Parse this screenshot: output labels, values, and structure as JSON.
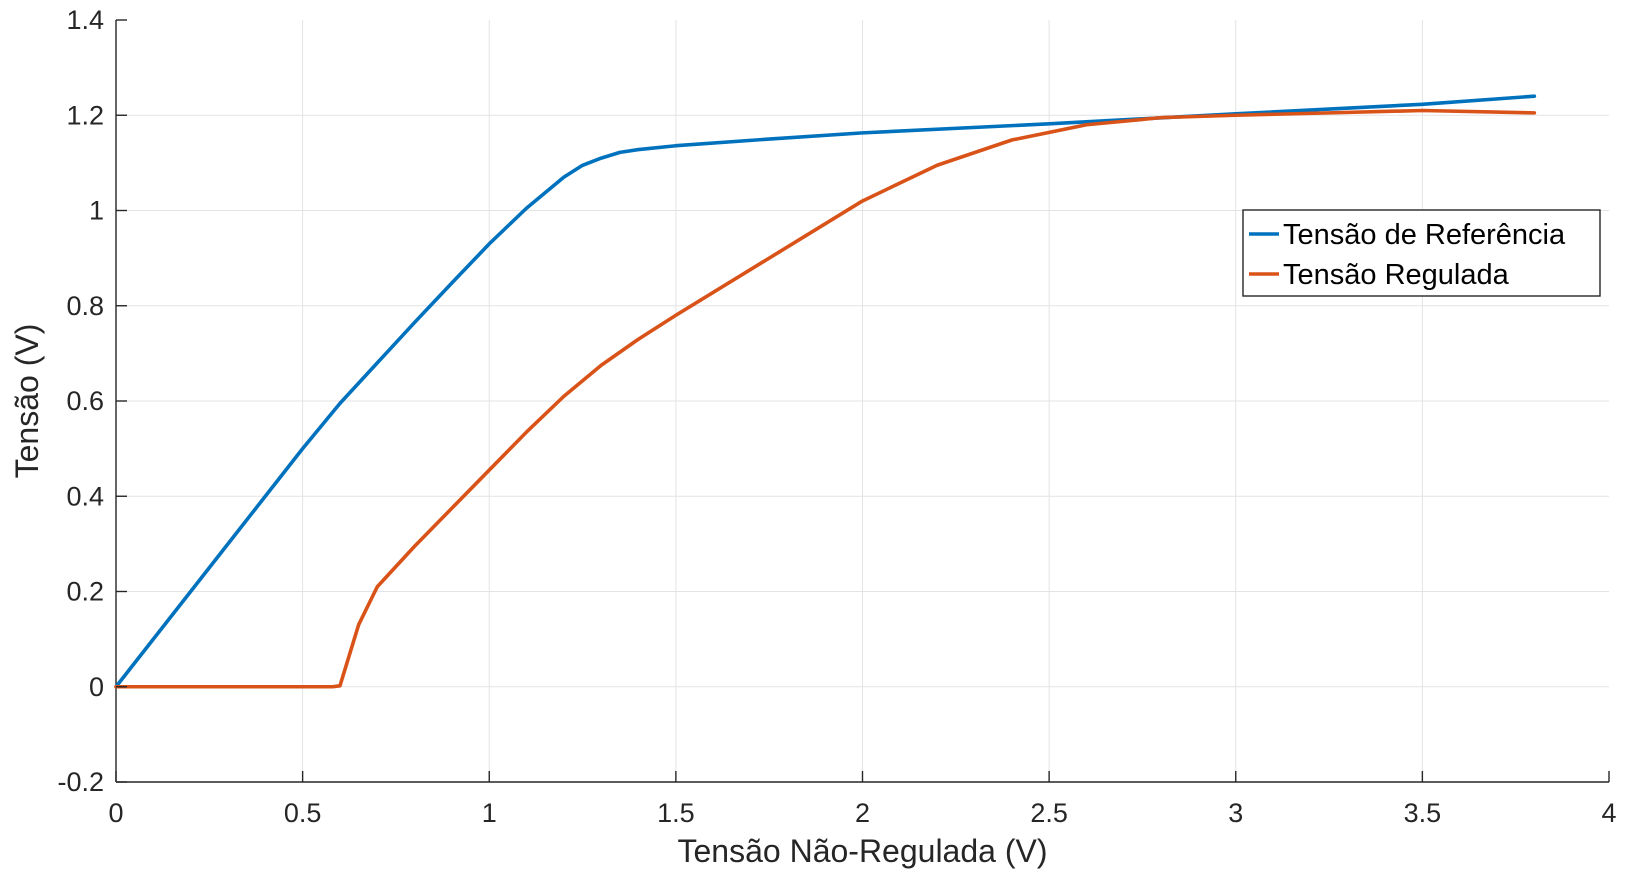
{
  "chart_data": {
    "type": "line",
    "title": "",
    "xlabel": "Tensão Não-Regulada (V)",
    "ylabel": "Tensão (V)",
    "xlim": [
      0,
      4
    ],
    "ylim": [
      -0.2,
      1.4
    ],
    "xticks": [
      0,
      0.5,
      1,
      1.5,
      2,
      2.5,
      3,
      3.5,
      4
    ],
    "xtick_labels": [
      "0",
      "0.5",
      "1",
      "1.5",
      "2",
      "2.5",
      "3",
      "3.5",
      "4"
    ],
    "yticks": [
      -0.2,
      0,
      0.2,
      0.4,
      0.6,
      0.8,
      1,
      1.2,
      1.4
    ],
    "ytick_labels": [
      "-0.2",
      "0",
      "0.2",
      "0.4",
      "0.6",
      "0.8",
      "1",
      "1.2",
      "1.4"
    ],
    "grid": true,
    "legend_position": "right",
    "series": [
      {
        "name": "Tensão de Referência",
        "color": "#0072BD",
        "points": [
          [
            0,
            0
          ],
          [
            0.1,
            0.1
          ],
          [
            0.2,
            0.2
          ],
          [
            0.3,
            0.3
          ],
          [
            0.4,
            0.4
          ],
          [
            0.5,
            0.5
          ],
          [
            0.6,
            0.595
          ],
          [
            0.7,
            0.68
          ],
          [
            0.8,
            0.765
          ],
          [
            0.9,
            0.848
          ],
          [
            1.0,
            0.93
          ],
          [
            1.1,
            1.005
          ],
          [
            1.2,
            1.07
          ],
          [
            1.25,
            1.095
          ],
          [
            1.3,
            1.11
          ],
          [
            1.35,
            1.122
          ],
          [
            1.4,
            1.128
          ],
          [
            1.5,
            1.136
          ],
          [
            1.75,
            1.15
          ],
          [
            2.0,
            1.163
          ],
          [
            2.5,
            1.182
          ],
          [
            3.0,
            1.203
          ],
          [
            3.5,
            1.223
          ],
          [
            3.8,
            1.24
          ]
        ]
      },
      {
        "name": "Tensão Regulada",
        "color": "#D95319",
        "points": [
          [
            0,
            0
          ],
          [
            0.3,
            0
          ],
          [
            0.58,
            0
          ],
          [
            0.6,
            0.002
          ],
          [
            0.65,
            0.13
          ],
          [
            0.7,
            0.21
          ],
          [
            0.8,
            0.295
          ],
          [
            0.9,
            0.375
          ],
          [
            1.0,
            0.455
          ],
          [
            1.1,
            0.535
          ],
          [
            1.2,
            0.61
          ],
          [
            1.3,
            0.675
          ],
          [
            1.4,
            0.73
          ],
          [
            1.5,
            0.78
          ],
          [
            1.75,
            0.9
          ],
          [
            2.0,
            1.02
          ],
          [
            2.2,
            1.095
          ],
          [
            2.4,
            1.148
          ],
          [
            2.6,
            1.18
          ],
          [
            2.8,
            1.195
          ],
          [
            3.0,
            1.2
          ],
          [
            3.25,
            1.205
          ],
          [
            3.5,
            1.21
          ],
          [
            3.8,
            1.205
          ]
        ]
      }
    ]
  }
}
